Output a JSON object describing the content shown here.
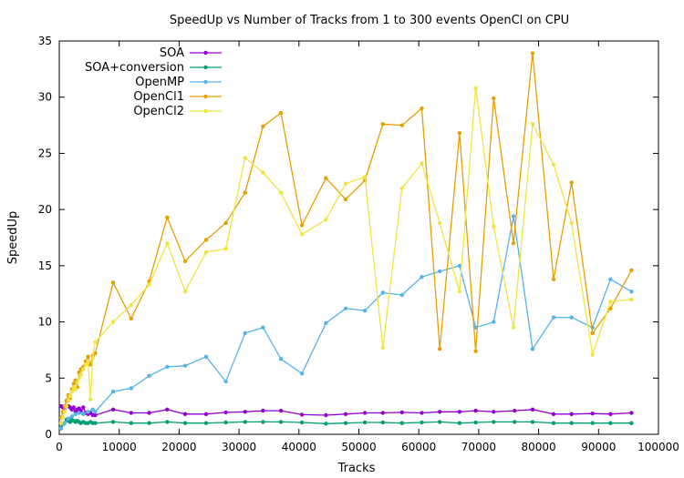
{
  "chart_data": {
    "type": "line",
    "title": "SpeedUp vs Number of Tracks from 1 to 300 events OpenCl on CPU",
    "xlabel": "Tracks",
    "ylabel": "SpeedUp",
    "xlim": [
      0,
      100000
    ],
    "ylim": [
      0,
      35
    ],
    "xticks": [
      0,
      10000,
      20000,
      30000,
      40000,
      50000,
      60000,
      70000,
      80000,
      90000,
      100000
    ],
    "yticks": [
      0,
      5,
      10,
      15,
      20,
      25,
      30,
      35
    ],
    "grid": false,
    "legend_position": "top-left",
    "series": [
      {
        "name": "SOA",
        "color": "#9400d3",
        "x": [
          300,
          600,
          900,
          1200,
          1500,
          1800,
          2100,
          2400,
          2700,
          3000,
          3300,
          3600,
          4000,
          4400,
          4800,
          5200,
          5600,
          6000,
          9000,
          12000,
          15000,
          18000,
          21000,
          24500,
          27800,
          31000,
          34000,
          37000,
          40500,
          44500,
          47800,
          51000,
          54000,
          57200,
          60500,
          63500,
          66800,
          69500,
          72500,
          76000,
          79000,
          82500,
          85500,
          89000,
          92000,
          95500
        ],
        "y": [
          2.5,
          2.4,
          2.3,
          2.5,
          2.5,
          2.4,
          2.2,
          2.4,
          2.0,
          2.2,
          2.3,
          2.1,
          2.4,
          1.9,
          1.8,
          1.9,
          1.7,
          1.7,
          2.2,
          1.9,
          1.9,
          2.2,
          1.8,
          1.8,
          1.95,
          2.0,
          2.1,
          2.1,
          1.75,
          1.7,
          1.8,
          1.9,
          1.9,
          1.95,
          1.9,
          2.0,
          2.0,
          2.1,
          2.0,
          2.1,
          2.2,
          1.8,
          1.8,
          1.85,
          1.8,
          1.9
        ]
      },
      {
        "name": "SOA+conversion",
        "color": "#009e73",
        "x": [
          300,
          600,
          900,
          1200,
          1500,
          1800,
          2100,
          2400,
          2700,
          3000,
          3300,
          3600,
          4000,
          4400,
          4800,
          5200,
          5600,
          6000,
          9000,
          12000,
          15000,
          18000,
          21000,
          24500,
          27800,
          31000,
          34000,
          37000,
          40500,
          44500,
          47800,
          51000,
          54000,
          57200,
          60500,
          63500,
          66800,
          69500,
          72500,
          76000,
          79000,
          82500,
          85500,
          89000,
          92000,
          95500
        ],
        "y": [
          0.6,
          0.9,
          1.0,
          1.3,
          1.2,
          1.1,
          1.3,
          1.2,
          1.1,
          1.2,
          1.1,
          1.0,
          1.1,
          1.0,
          1.0,
          1.1,
          1.0,
          1.0,
          1.1,
          1.0,
          1.0,
          1.1,
          1.0,
          1.0,
          1.05,
          1.1,
          1.1,
          1.1,
          1.05,
          0.95,
          1.0,
          1.05,
          1.05,
          1.0,
          1.05,
          1.1,
          1.0,
          1.05,
          1.1,
          1.1,
          1.1,
          1.0,
          1.0,
          1.0,
          1.0,
          1.0
        ]
      },
      {
        "name": "OpenMP",
        "color": "#56b4e9",
        "x": [
          300,
          900,
          1500,
          2100,
          2700,
          3300,
          4000,
          4800,
          5600,
          6000,
          9000,
          12000,
          15000,
          18000,
          21000,
          24500,
          27800,
          31000,
          34000,
          37000,
          40500,
          44500,
          47800,
          51000,
          54000,
          57200,
          60500,
          63500,
          66800,
          69500,
          72500,
          75800,
          79000,
          82500,
          85500,
          89000,
          92000,
          95500
        ],
        "y": [
          0.5,
          1.0,
          1.4,
          1.6,
          1.8,
          1.9,
          1.8,
          2.0,
          2.2,
          2.0,
          3.8,
          4.1,
          5.2,
          6.0,
          6.1,
          6.9,
          4.7,
          9.0,
          9.5,
          6.7,
          5.4,
          9.9,
          11.2,
          11.0,
          12.6,
          12.4,
          14.0,
          14.5,
          15.0,
          9.5,
          10.0,
          19.4,
          7.6,
          10.4,
          10.4,
          9.5,
          13.8,
          12.7
        ]
      },
      {
        "name": "OpenCl1",
        "color": "#e69f00",
        "x": [
          300,
          600,
          900,
          1200,
          1500,
          1800,
          2100,
          2400,
          2700,
          3000,
          3300,
          3600,
          4000,
          4400,
          4800,
          5200,
          5600,
          6000,
          9000,
          12000,
          15000,
          18000,
          21000,
          24500,
          27800,
          31000,
          34000,
          37000,
          40500,
          44500,
          47800,
          51000,
          54000,
          57200,
          60500,
          63500,
          66800,
          69500,
          72500,
          75800,
          79000,
          82500,
          85500,
          89000,
          92000,
          95500
        ],
        "y": [
          1.5,
          2.0,
          2.5,
          3.0,
          3.5,
          3.2,
          4.0,
          4.5,
          4.8,
          4.2,
          5.5,
          5.8,
          6.0,
          6.5,
          6.9,
          6.2,
          7.0,
          7.2,
          13.5,
          10.3,
          13.6,
          19.3,
          15.4,
          17.3,
          18.8,
          21.5,
          27.4,
          28.6,
          18.6,
          22.8,
          20.9,
          22.6,
          27.6,
          27.5,
          29.0,
          7.6,
          26.8,
          7.4,
          29.9,
          17.0,
          33.9,
          13.8,
          22.4,
          9.0,
          11.2,
          14.6
        ]
      },
      {
        "name": "OpenCl2",
        "color": "#f0e442",
        "x": [
          300,
          600,
          900,
          1200,
          1500,
          1800,
          2100,
          2400,
          2700,
          3000,
          3300,
          3600,
          4000,
          4400,
          4800,
          5200,
          5600,
          6000,
          9000,
          12000,
          15000,
          18000,
          21000,
          24500,
          27800,
          31000,
          34000,
          37000,
          40500,
          44500,
          47800,
          51000,
          54000,
          57200,
          60500,
          63500,
          66800,
          69500,
          72500,
          75800,
          79000,
          82500,
          85500,
          89000,
          92000,
          95500
        ],
        "y": [
          1.0,
          1.5,
          2.0,
          2.5,
          3.0,
          3.4,
          3.8,
          4.2,
          4.0,
          4.6,
          5.0,
          5.3,
          5.8,
          6.2,
          6.5,
          3.1,
          6.8,
          8.2,
          10.0,
          11.5,
          13.3,
          17.0,
          12.7,
          16.2,
          16.5,
          24.6,
          23.3,
          21.5,
          17.8,
          19.1,
          22.3,
          22.9,
          7.7,
          21.9,
          24.1,
          18.8,
          12.7,
          30.8,
          18.5,
          9.5,
          27.6,
          24.0,
          18.8,
          7.1,
          11.8,
          12.0
        ]
      }
    ]
  }
}
